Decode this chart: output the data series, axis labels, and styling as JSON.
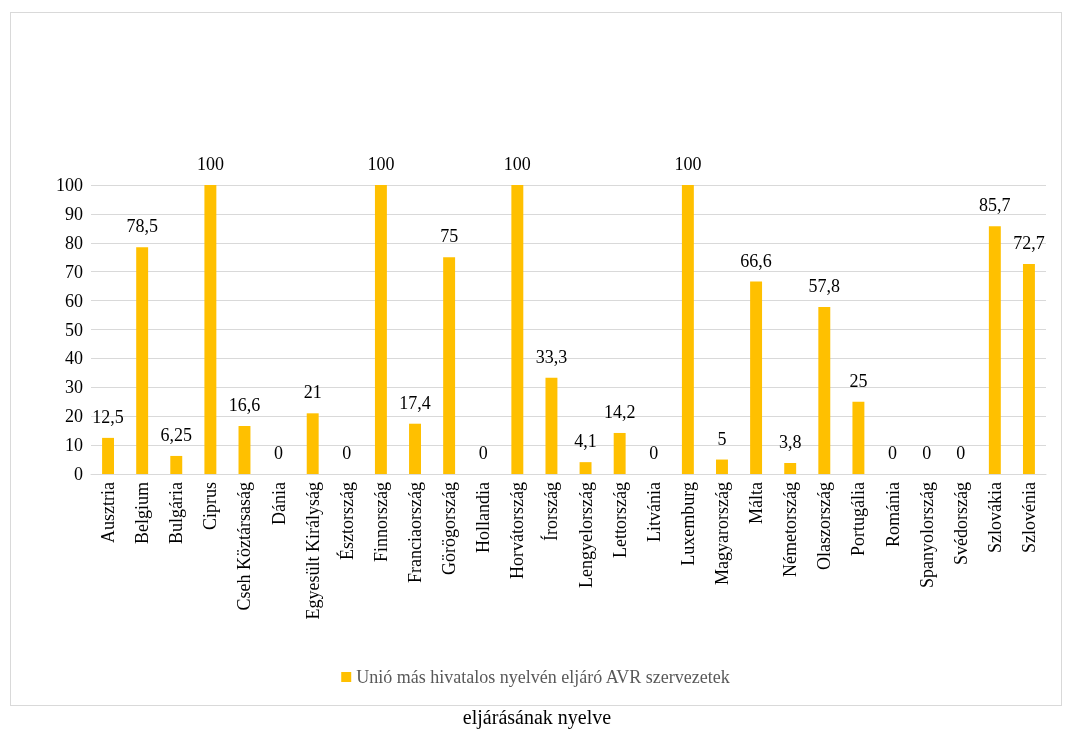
{
  "chart_data": {
    "type": "bar",
    "categories": [
      "Ausztria",
      "Belgium",
      "Bulgária",
      "Ciprus",
      "Cseh Köztársaság",
      "Dánia",
      "Egyesült Királyság",
      "Észtország",
      "Finnország",
      "Franciaország",
      "Görögország",
      "Hollandia",
      "Horvátország",
      "Írország",
      "Lengyelország",
      "Lettország",
      "Litvánia",
      "Luxemburg",
      "Magyarország",
      "Málta",
      "Németország",
      "Olaszország",
      "Portugália",
      "Románia",
      "Spanyolország",
      "Svédország",
      "Szlovákia",
      "Szlovénia"
    ],
    "series": [
      {
        "name": "Unió más hivatalos nyelvén eljáró AVR szervezetek",
        "color": "#ffc000",
        "values": [
          12.5,
          78.5,
          6.25,
          100,
          16.6,
          0,
          21,
          0,
          100,
          17.4,
          75,
          0,
          100,
          33.3,
          4.1,
          14.2,
          0,
          100,
          5,
          66.6,
          3.8,
          57.8,
          25,
          0,
          0,
          0,
          85.7,
          72.7
        ],
        "value_labels": [
          "12,5",
          "78,5",
          "6,25",
          "100",
          "16,6",
          "0",
          "21",
          "0",
          "100",
          "17,4",
          "75",
          "0",
          "100",
          "33,3",
          "4,1",
          "14,2",
          "0",
          "100",
          "5",
          "66,6",
          "3,8",
          "57,8",
          "25",
          "0",
          "0",
          "0",
          "85,7",
          "72,7"
        ]
      }
    ],
    "ylim": [
      0,
      100
    ],
    "yticks": [
      0,
      10,
      20,
      30,
      40,
      50,
      60,
      70,
      80,
      90,
      100
    ],
    "grid": "y",
    "legend": "bottom",
    "annotations": [
      "eljárásának nyelve"
    ]
  }
}
